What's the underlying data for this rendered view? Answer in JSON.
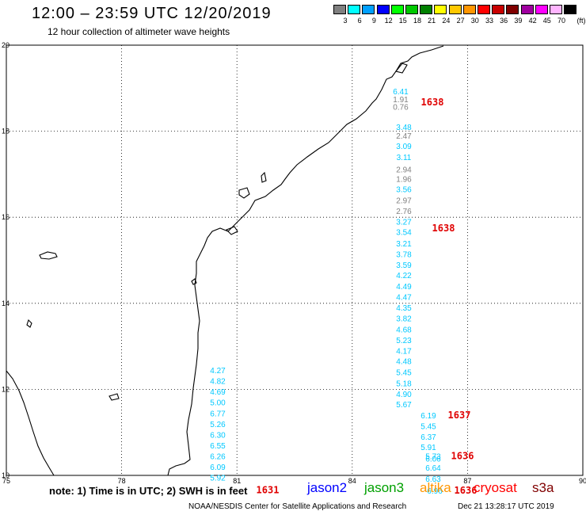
{
  "header": {
    "title": "12:00 – 23:59 UTC 12/20/2019",
    "subtitle": "12 hour collection of altimeter wave heights"
  },
  "legend": {
    "unit": "(ft)",
    "bins": [
      {
        "label": "3",
        "color": "#808080"
      },
      {
        "label": "6",
        "color": "#00ffff"
      },
      {
        "label": "9",
        "color": "#00a0ff"
      },
      {
        "label": "12",
        "color": "#0000ff"
      },
      {
        "label": "15",
        "color": "#00ff00"
      },
      {
        "label": "18",
        "color": "#00c800"
      },
      {
        "label": "21",
        "color": "#008000"
      },
      {
        "label": "24",
        "color": "#ffff00"
      },
      {
        "label": "27",
        "color": "#ffc800"
      },
      {
        "label": "30",
        "color": "#ff9600"
      },
      {
        "label": "33",
        "color": "#ff0000"
      },
      {
        "label": "36",
        "color": "#c80000"
      },
      {
        "label": "39",
        "color": "#800000"
      },
      {
        "label": "42",
        "color": "#a000a0"
      },
      {
        "label": "45",
        "color": "#ff00ff"
      },
      {
        "label": "70",
        "color": "#ffb4ff"
      },
      {
        "label": "",
        "color": "#000000"
      }
    ]
  },
  "axes": {
    "lat": [
      "20",
      "18",
      "16",
      "14",
      "12",
      "10"
    ],
    "lon": [
      "75",
      "78",
      "81",
      "84",
      "87",
      "90"
    ]
  },
  "tracks": [
    {
      "id": "east",
      "time": "1638",
      "time_lat": 18.67,
      "points": [
        {
          "lat": 18.93,
          "v": "6.41",
          "c": "#00c8ff"
        },
        {
          "lat": 18.75,
          "v": "1.91",
          "c": "#808080"
        },
        {
          "lat": 18.57,
          "v": "0.76",
          "c": "#808080"
        }
      ]
    },
    {
      "id": "middle",
      "time": "1638",
      "time_lat": 15.75,
      "points": [
        {
          "lat": 18.1,
          "v": "3.48",
          "c": "#00c8ff"
        },
        {
          "lat": 17.9,
          "v": "2.47",
          "c": "#808080"
        },
        {
          "lat": 17.66,
          "v": "3.09",
          "c": "#00c8ff"
        },
        {
          "lat": 17.4,
          "v": "3.11",
          "c": "#00c8ff"
        },
        {
          "lat": 17.12,
          "v": "2.94",
          "c": "#808080"
        },
        {
          "lat": 16.9,
          "v": "1.96",
          "c": "#808080"
        },
        {
          "lat": 16.66,
          "v": "3.56",
          "c": "#00c8ff"
        },
        {
          "lat": 16.4,
          "v": "2.97",
          "c": "#808080"
        },
        {
          "lat": 16.15,
          "v": "2.76",
          "c": "#808080"
        },
        {
          "lat": 15.9,
          "v": "3.27",
          "c": "#00c8ff"
        },
        {
          "lat": 15.66,
          "v": "3.54",
          "c": "#00c8ff"
        },
        {
          "lat": 15.4,
          "v": "3.21",
          "c": "#00c8ff"
        },
        {
          "lat": 15.15,
          "v": "3.78",
          "c": "#00c8ff"
        },
        {
          "lat": 14.9,
          "v": "3.59",
          "c": "#00c8ff"
        },
        {
          "lat": 14.66,
          "v": "4.22",
          "c": "#00c8ff"
        },
        {
          "lat": 14.4,
          "v": "4.49",
          "c": "#00c8ff"
        },
        {
          "lat": 14.15,
          "v": "4.47",
          "c": "#00c8ff"
        },
        {
          "lat": 13.9,
          "v": "4.35",
          "c": "#00c8ff"
        },
        {
          "lat": 13.66,
          "v": "3.82",
          "c": "#00c8ff"
        },
        {
          "lat": 13.4,
          "v": "4.68",
          "c": "#00c8ff"
        },
        {
          "lat": 13.15,
          "v": "5.23",
          "c": "#00c8ff"
        },
        {
          "lat": 12.9,
          "v": "4.17",
          "c": "#00c8ff"
        },
        {
          "lat": 12.66,
          "v": "4.48",
          "c": "#00c8ff"
        },
        {
          "lat": 12.4,
          "v": "5.45",
          "c": "#00c8ff"
        },
        {
          "lat": 12.15,
          "v": "5.18",
          "c": "#00c8ff"
        },
        {
          "lat": 11.9,
          "v": "4.90",
          "c": "#00c8ff"
        },
        {
          "lat": 11.66,
          "v": "5.67",
          "c": "#00c8ff"
        }
      ]
    },
    {
      "id": "south-a",
      "time": "1637",
      "time_lat": 11.4,
      "points": [
        {
          "lat": 11.4,
          "v": "6.19",
          "c": "#00c8ff"
        },
        {
          "lat": 11.15,
          "v": "5.45",
          "c": "#00c8ff"
        },
        {
          "lat": 10.9,
          "v": "6.37",
          "c": "#00c8ff"
        },
        {
          "lat": 10.66,
          "v": "5.91",
          "c": "#00c8ff"
        }
      ]
    },
    {
      "id": "south-b",
      "time": "1636",
      "time_lat": 10.45,
      "points": [
        {
          "lat": 10.45,
          "v": "5.73",
          "c": "#00c8ff"
        },
        {
          "lat": 10.4,
          "v": "6.06",
          "c": "#00c8ff"
        },
        {
          "lat": 10.18,
          "v": "6.64",
          "c": "#00c8ff"
        },
        {
          "lat": 9.93,
          "v": "6.63",
          "c": "#00c8ff"
        }
      ]
    },
    {
      "id": "south-c",
      "time": "1636",
      "time_lat": 9.65,
      "points": [
        {
          "lat": 9.65,
          "v": "6.96",
          "c": "#00c8ff"
        }
      ]
    },
    {
      "id": "west",
      "time": "1631",
      "time_lat": 9.66,
      "points": [
        {
          "lat": 12.45,
          "v": "4.27",
          "c": "#00c8ff"
        },
        {
          "lat": 12.2,
          "v": "4.82",
          "c": "#00c8ff"
        },
        {
          "lat": 11.95,
          "v": "4.69",
          "c": "#00c8ff"
        },
        {
          "lat": 11.7,
          "v": "5.00",
          "c": "#00c8ff"
        },
        {
          "lat": 11.45,
          "v": "6.77",
          "c": "#00c8ff"
        },
        {
          "lat": 11.2,
          "v": "5.26",
          "c": "#00c8ff"
        },
        {
          "lat": 10.95,
          "v": "6.30",
          "c": "#00c8ff"
        },
        {
          "lat": 10.7,
          "v": "6.55",
          "c": "#00c8ff"
        },
        {
          "lat": 10.45,
          "v": "6.26",
          "c": "#00c8ff"
        },
        {
          "lat": 10.2,
          "v": "6.09",
          "c": "#00c8ff"
        },
        {
          "lat": 9.95,
          "v": "5.92",
          "c": "#00c8ff"
        }
      ]
    }
  ],
  "notes": {
    "text": "note: 1) Time is in UTC; 2) SWH is in feet",
    "satellites": [
      {
        "name": "jason2",
        "color": "#0000ff"
      },
      {
        "name": "jason3",
        "color": "#00a000"
      },
      {
        "name": "altika",
        "color": "#ff9600"
      },
      {
        "name": "cryosat",
        "color": "#ff0000"
      },
      {
        "name": "s3a",
        "color": "#800000"
      }
    ]
  },
  "footer": {
    "credit": "NOAA/NESDIS Center for Satellite Applications and Research",
    "timestamp": "Dec 21 13:28:17 UTC 2019"
  }
}
